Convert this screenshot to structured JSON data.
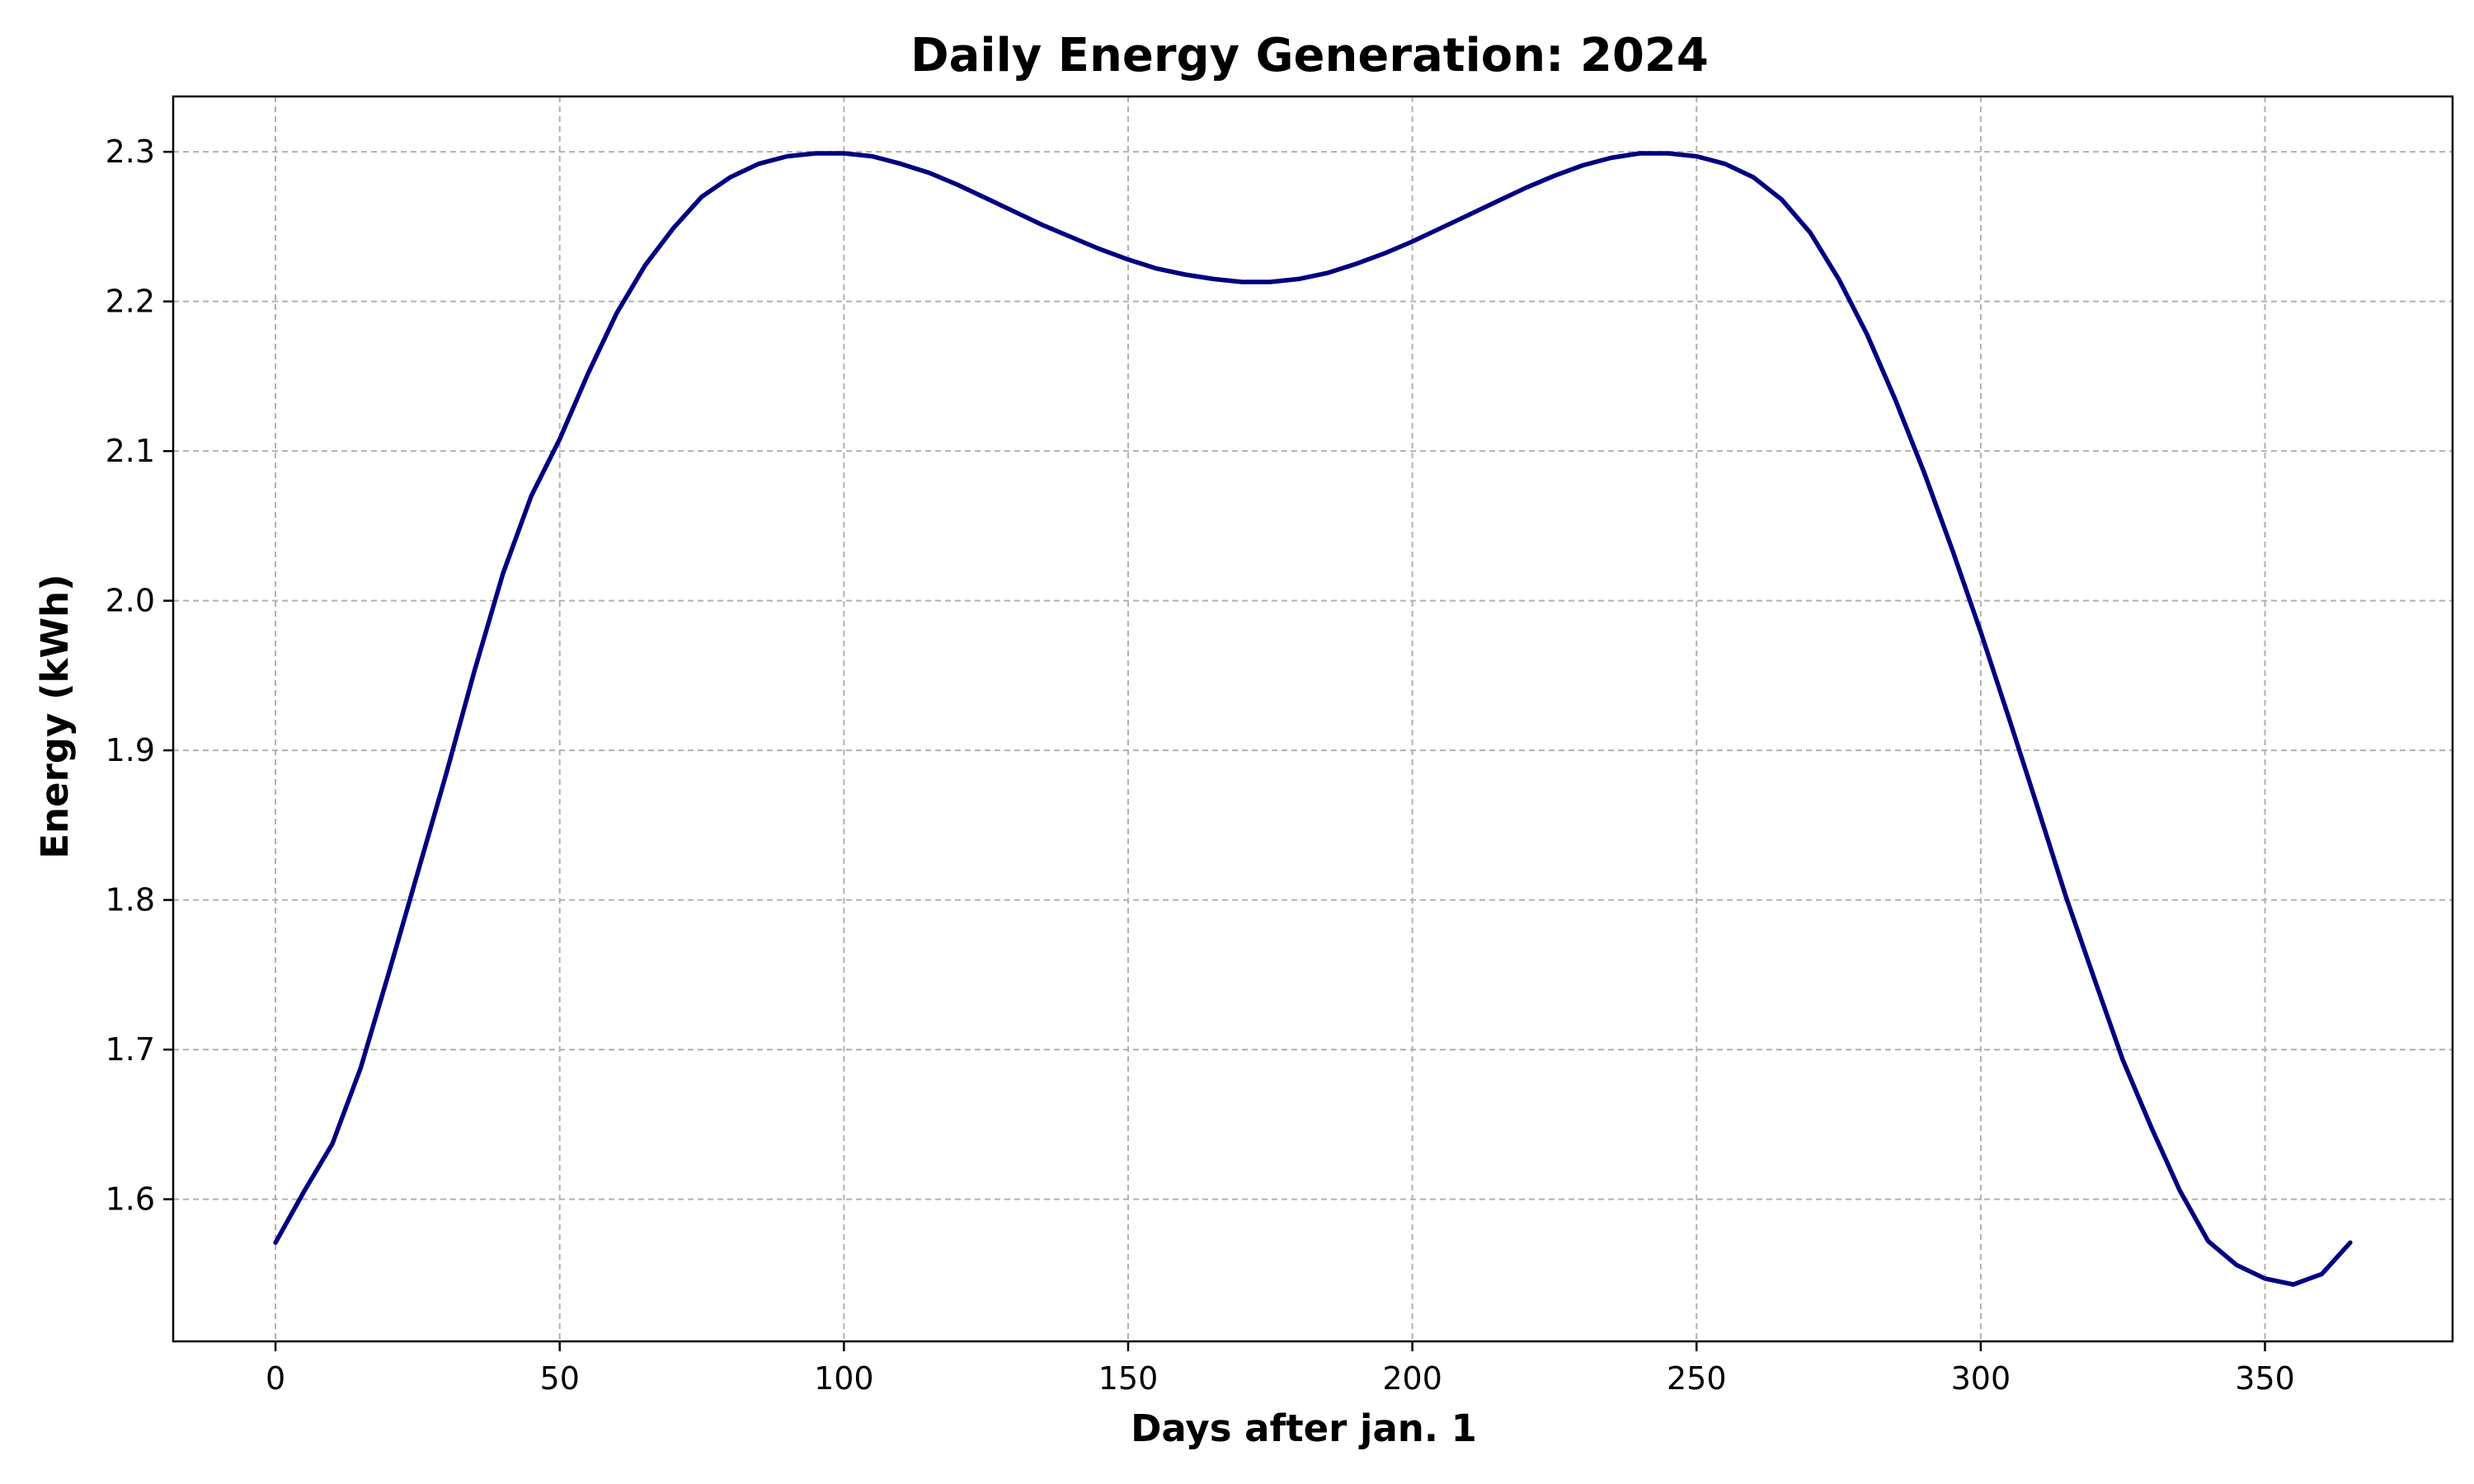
{
  "chart_data": {
    "type": "line",
    "title": "Daily Energy Generation: 2024",
    "xlabel": "Days after jan. 1",
    "ylabel": "Energy (kWh)",
    "xlim": [
      -18,
      383
    ],
    "ylim": [
      1.505,
      2.337
    ],
    "xticks": [
      0,
      50,
      100,
      150,
      200,
      250,
      300,
      350
    ],
    "xtick_labels": [
      "0",
      "50",
      "100",
      "150",
      "200",
      "250",
      "300",
      "350"
    ],
    "yticks": [
      1.6,
      1.7,
      1.8,
      1.9,
      2.0,
      2.1,
      2.2,
      2.3
    ],
    "ytick_labels": [
      "1.6",
      "1.7",
      "1.8",
      "1.9",
      "2.0",
      "2.1",
      "2.2",
      "2.3"
    ],
    "grid": true,
    "series": [
      {
        "color": "#000080",
        "x": [
          0,
          5,
          10,
          15,
          20,
          25,
          30,
          35,
          40,
          45,
          50,
          55,
          60,
          65,
          70,
          75,
          80,
          85,
          90,
          95,
          100,
          105,
          110,
          115,
          120,
          125,
          130,
          135,
          140,
          145,
          150,
          155,
          160,
          165,
          170,
          175,
          180,
          185,
          190,
          195,
          200,
          205,
          210,
          215,
          220,
          225,
          230,
          235,
          240,
          245,
          250,
          255,
          260,
          265,
          270,
          275,
          280,
          285,
          290,
          295,
          300,
          305,
          310,
          315,
          320,
          325,
          330,
          335,
          340,
          345,
          350,
          355,
          360,
          365
        ],
        "y": [
          1.571,
          1.605,
          1.637,
          1.688,
          1.752,
          1.818,
          1.884,
          1.953,
          2.018,
          2.07,
          2.108,
          2.152,
          2.192,
          2.224,
          2.249,
          2.27,
          2.283,
          2.292,
          2.297,
          2.299,
          2.299,
          2.297,
          2.292,
          2.286,
          2.278,
          2.269,
          2.26,
          2.251,
          2.243,
          2.235,
          2.228,
          2.222,
          2.218,
          2.215,
          2.213,
          2.213,
          2.215,
          2.219,
          2.225,
          2.232,
          2.24,
          2.249,
          2.258,
          2.267,
          2.276,
          2.284,
          2.291,
          2.296,
          2.299,
          2.299,
          2.297,
          2.292,
          2.283,
          2.268,
          2.246,
          2.215,
          2.178,
          2.134,
          2.086,
          2.034,
          1.979,
          1.921,
          1.862,
          1.802,
          1.747,
          1.693,
          1.648,
          1.606,
          1.572,
          1.556,
          1.547,
          1.543,
          1.55,
          1.571
        ]
      }
    ]
  }
}
